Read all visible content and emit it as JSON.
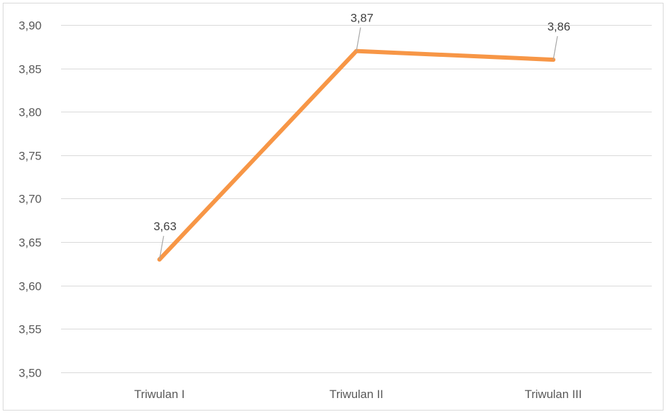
{
  "chart_data": {
    "type": "line",
    "title": "",
    "xlabel": "",
    "ylabel": "",
    "categories": [
      "Triwulan I",
      "Triwulan II",
      "Triwulan III"
    ],
    "series": [
      {
        "values": [
          3.63,
          3.87,
          3.86
        ],
        "data_labels": [
          "3,63",
          "3,87",
          "3,86"
        ],
        "color": "#F79646"
      }
    ],
    "ylim": [
      3.5,
      3.9
    ],
    "y_ticks": [
      3.5,
      3.55,
      3.6,
      3.65,
      3.7,
      3.75,
      3.8,
      3.85,
      3.9
    ],
    "y_tick_labels": [
      "3,50",
      "3,55",
      "3,60",
      "3,65",
      "3,70",
      "3,75",
      "3,80",
      "3,85",
      "3,90"
    ],
    "grid": true,
    "legend": "none",
    "colors": {
      "line": "#F79646",
      "grid": "#d9d9d9",
      "tick_text": "#595959",
      "label_text": "#404040",
      "leader": "#a6a6a6"
    }
  }
}
